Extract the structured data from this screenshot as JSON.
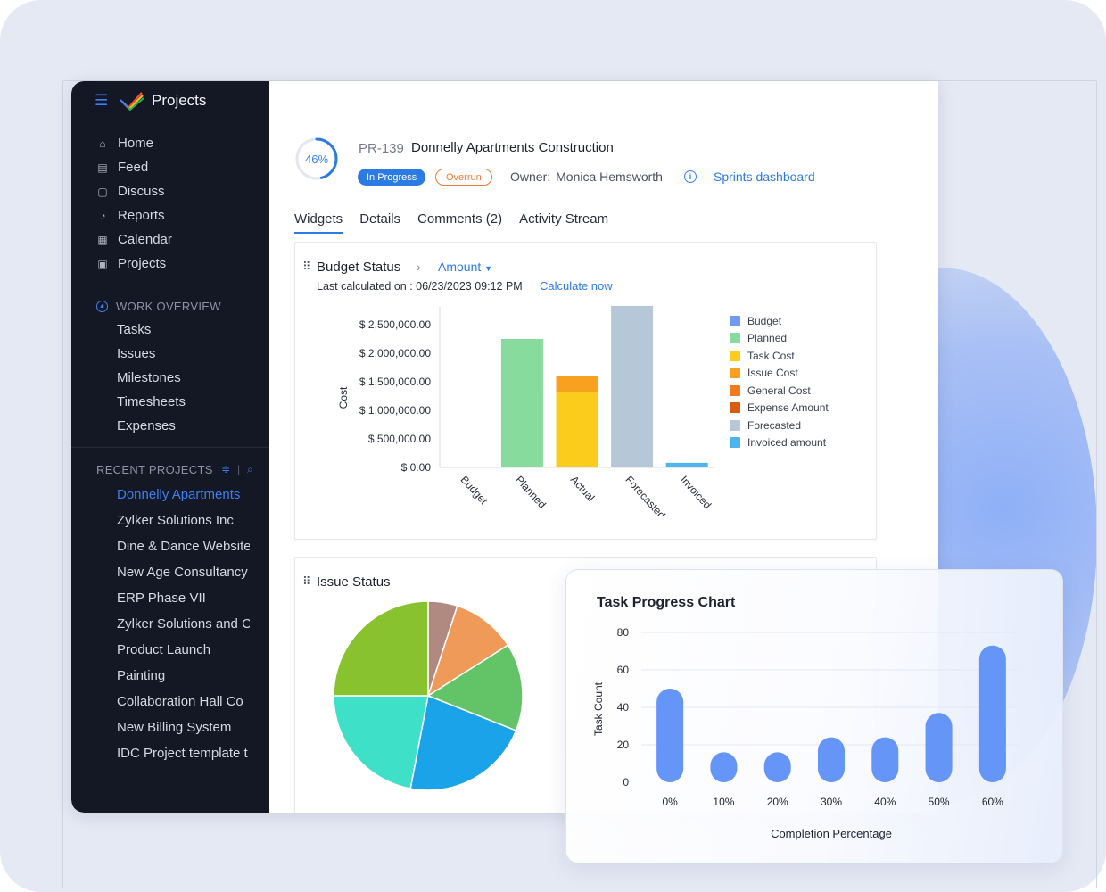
{
  "sidebar": {
    "app_title": "Projects",
    "nav": [
      {
        "label": "Home",
        "icon": "home-icon"
      },
      {
        "label": "Feed",
        "icon": "feed-icon"
      },
      {
        "label": "Discuss",
        "icon": "discuss-icon"
      },
      {
        "label": "Reports",
        "icon": "reports-icon"
      },
      {
        "label": "Calendar",
        "icon": "calendar-icon"
      },
      {
        "label": "Projects",
        "icon": "projects-icon"
      }
    ],
    "work_overview": {
      "title": "WORK OVERVIEW",
      "items": [
        "Tasks",
        "Issues",
        "Milestones",
        "Timesheets",
        "Expenses"
      ]
    },
    "recent_projects": {
      "title": "RECENT PROJECTS",
      "items": [
        "Donnelly Apartments",
        "Zylker Solutions Inc",
        "Dine & Dance Website",
        "New Age Consultancy",
        "ERP Phase VII",
        "Zylker Solutions and C",
        "Product Launch",
        "Painting",
        "Collaboration Hall Co",
        "New Billing System",
        "IDC Project template t"
      ]
    }
  },
  "project": {
    "progress": "46%",
    "progress_value": 46,
    "id": "PR-139",
    "name": "Donnelly Apartments Construction",
    "status": "In Progress",
    "flag": "Overrun",
    "owner_label": "Owner:",
    "owner": "Monica Hemsworth",
    "sprints_link": "Sprints dashboard"
  },
  "tabs": [
    "Widgets",
    "Details",
    "Comments (2)",
    "Activity Stream"
  ],
  "budget": {
    "title": "Budget Status",
    "dropdown": "Amount",
    "last_calc_label": "Last calculated on : 06/23/2023 09:12 PM",
    "calc_now": "Calculate now"
  },
  "issue": {
    "title": "Issue Status"
  },
  "colors": {
    "accent": "#2c7be5",
    "sidebar_bg": "#141824",
    "overrun": "#f07a3a"
  },
  "chart_data": [
    {
      "type": "bar",
      "title": "Budget Status",
      "ylabel": "Cost",
      "xlabel": "",
      "ylim": [
        0,
        2750000
      ],
      "y_ticks": [
        "$ 0.00",
        "$ 500,000.00",
        "$ 1,000,000.00",
        "$ 1,500,000.00",
        "$ 2,000,000.00",
        "$ 2,500,000.00"
      ],
      "categories": [
        "Budget",
        "Planned",
        "Actual",
        "Forecasted",
        "Invoiced"
      ],
      "legend": [
        {
          "name": "Budget",
          "color": "#6f9cf0"
        },
        {
          "name": "Planned",
          "color": "#87dc9d"
        },
        {
          "name": "Task Cost",
          "color": "#fccc1c"
        },
        {
          "name": "Issue Cost",
          "color": "#f8a020"
        },
        {
          "name": "General Cost",
          "color": "#f37b1d"
        },
        {
          "name": "Expense Amount",
          "color": "#d85d10"
        },
        {
          "name": "Forecasted",
          "color": "#b6c8d8"
        },
        {
          "name": "Invoiced amount",
          "color": "#4db4ef"
        }
      ],
      "series": [
        {
          "name": "Budget",
          "color": "#6f9cf0",
          "values": [
            0,
            0,
            0,
            0,
            0
          ]
        },
        {
          "name": "Planned",
          "color": "#87dc9d",
          "values": [
            0,
            2250000,
            0,
            0,
            0
          ]
        },
        {
          "name": "Task Cost",
          "color": "#fccc1c",
          "values": [
            0,
            0,
            1320000,
            0,
            0
          ]
        },
        {
          "name": "Issue Cost",
          "color": "#f8a020",
          "values": [
            0,
            0,
            280000,
            0,
            0
          ]
        },
        {
          "name": "Forecasted",
          "color": "#b6c8d8",
          "values": [
            0,
            0,
            0,
            2830000,
            0
          ]
        },
        {
          "name": "Invoiced amount",
          "color": "#4db4ef",
          "values": [
            0,
            0,
            0,
            0,
            80000
          ]
        }
      ]
    },
    {
      "type": "pie",
      "title": "Issue Status",
      "slices": [
        {
          "value": 5,
          "color": "#b08a80"
        },
        {
          "value": 11,
          "color": "#f09a5a"
        },
        {
          "value": 15,
          "color": "#62c466"
        },
        {
          "value": 22,
          "color": "#1aa3e8"
        },
        {
          "value": 22,
          "color": "#3ee0c8"
        },
        {
          "value": 25,
          "color": "#88c22e"
        }
      ]
    },
    {
      "type": "bar",
      "title": "Task Progress Chart",
      "xlabel": "Completion Percentage",
      "ylabel": "Task Count",
      "ylim": [
        0,
        80
      ],
      "y_ticks": [
        0,
        20,
        40,
        60,
        80
      ],
      "categories": [
        "0%",
        "10%",
        "20%",
        "30%",
        "40%",
        "50%",
        "60%"
      ],
      "values": [
        50,
        16,
        16,
        24,
        24,
        37,
        73
      ],
      "color": "#6495f7"
    }
  ]
}
